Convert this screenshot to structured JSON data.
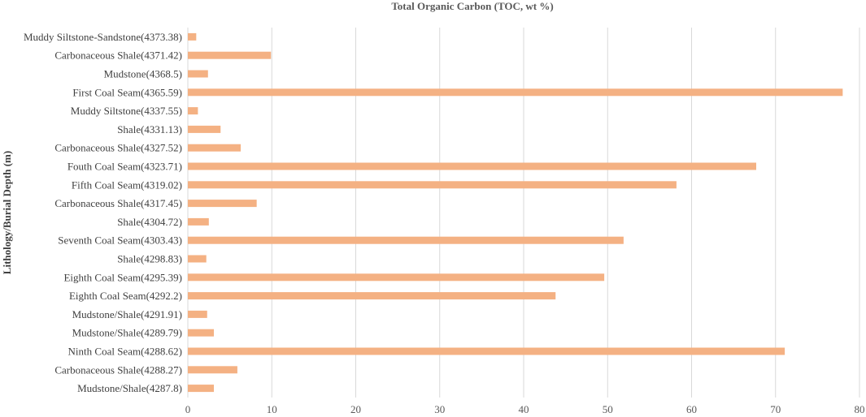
{
  "chart_data": {
    "type": "bar",
    "orientation": "horizontal",
    "title": "Total Organic Carbon (TOC, wt %)",
    "ylabel": "Lithology/Burial Depth (m)",
    "xlabel": "",
    "xlim": [
      0,
      80
    ],
    "xticks": [
      0,
      10,
      20,
      30,
      40,
      50,
      60,
      70,
      80
    ],
    "grid": true,
    "bar_color": "#F4B183",
    "categories": [
      "Muddy Siltstone-Sandstone(4373.38)",
      "Carbonaceous Shale(4371.42)",
      "Mudstone(4368.5)",
      "First Coal Seam(4365.59)",
      "Muddy Siltstone(4337.55)",
      "Shale(4331.13)",
      "Carbonaceous Shale(4327.52)",
      "Fouth Coal Seam(4323.71)",
      "Fifth Coal Seam(4319.02)",
      "Carbonaceous Shale(4317.45)",
      "Shale(4304.72)",
      "Seventh Coal Seam(4303.43)",
      "Shale(4298.83)",
      "Eighth Coal Seam(4295.39)",
      "Eighth Coal Seam(4292.2)",
      "Mudstone/Shale(4291.91)",
      "Mudstone/Shale(4289.79)",
      "Ninth Coal Seam(4288.62)",
      "Carbonaceous Shale(4288.27)",
      "Mudstone/Shale(4287.8)"
    ],
    "values": [
      1.0,
      9.9,
      2.4,
      78.0,
      1.2,
      3.9,
      6.3,
      67.7,
      58.2,
      8.2,
      2.5,
      51.9,
      2.2,
      49.6,
      43.8,
      2.3,
      3.1,
      71.1,
      5.9,
      3.1
    ]
  }
}
